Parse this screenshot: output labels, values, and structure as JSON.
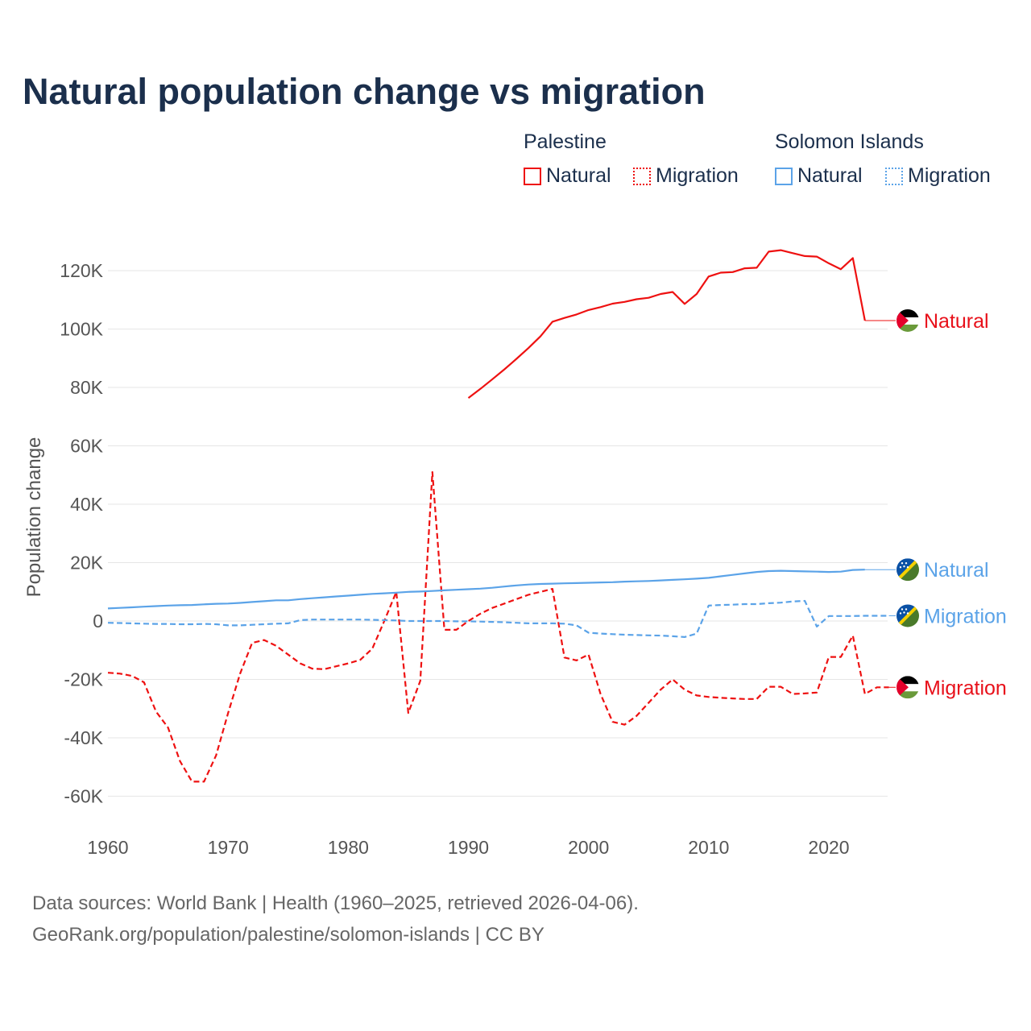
{
  "chart_data": {
    "type": "line",
    "title": "Natural population change vs migration",
    "ylabel": "Population change",
    "xlabel": "",
    "xlim": [
      1960,
      2025
    ],
    "ylim": [
      -70000,
      130000
    ],
    "xticks": [
      1960,
      1970,
      1980,
      1990,
      2000,
      2010,
      2020
    ],
    "xtick_labels": [
      "1960",
      "1970",
      "1980",
      "1990",
      "2000",
      "2010",
      "2020"
    ],
    "yticks": [
      -60000,
      -40000,
      -20000,
      0,
      20000,
      40000,
      60000,
      80000,
      100000,
      120000
    ],
    "ytick_labels": [
      "-60K",
      "-40K",
      "-20K",
      "0",
      "20K",
      "40K",
      "60K",
      "80K",
      "100K",
      "120K"
    ],
    "grid": true,
    "legend": {
      "placement": "top-right",
      "groups": [
        {
          "name": "Palestine",
          "items": [
            "Natural",
            "Migration"
          ]
        },
        {
          "name": "Solomon Islands",
          "items": [
            "Natural",
            "Migration"
          ]
        }
      ]
    },
    "series": [
      {
        "name": "Palestine Natural",
        "country": "Palestine",
        "kind": "Natural",
        "color": "#ee1111",
        "dash": false,
        "start": 1990,
        "values": [
          76400,
          79500,
          82800,
          86200,
          89800,
          93500,
          97500,
          102500,
          103800,
          105000,
          106500,
          107500,
          108700,
          109300,
          110200,
          110700,
          112000,
          112700,
          108600,
          112000,
          118000,
          119300,
          119500,
          120800,
          121000,
          126500,
          127000,
          126000,
          125000,
          124800,
          122500,
          120500,
          124300,
          102900
        ],
        "end_label": "Natural"
      },
      {
        "name": "Palestine Migration",
        "country": "Palestine",
        "kind": "Migration",
        "color": "#ee1111",
        "dash": true,
        "start": 1960,
        "values": [
          -17700,
          -18000,
          -18800,
          -21000,
          -31000,
          -36500,
          -48000,
          -55000,
          -55000,
          -46000,
          -31500,
          -18000,
          -7500,
          -6500,
          -8500,
          -11500,
          -14500,
          -16300,
          -16500,
          -15500,
          -14500,
          -13300,
          -9500,
          0,
          10000,
          -31500,
          -20500,
          51000,
          -3000,
          -3000,
          0,
          2500,
          4500,
          6000,
          7500,
          9000,
          10000,
          11000,
          -12500,
          -13500,
          -11500,
          -25000,
          -34500,
          -35500,
          -32500,
          -28000,
          -23500,
          -20000,
          -23500,
          -25500,
          -26000,
          -26300,
          -26500,
          -26700,
          -26700,
          -22500,
          -22500,
          -25000,
          -24800,
          -24500,
          -12300,
          -12300,
          -5000,
          -25000,
          -22700,
          -22700
        ],
        "end_label": "Migration"
      },
      {
        "name": "Solomon Islands Natural",
        "country": "Solomon Islands",
        "kind": "Natural",
        "color": "#5ba3e8",
        "dash": false,
        "start": 1960,
        "values": [
          4300,
          4500,
          4700,
          4900,
          5100,
          5300,
          5400,
          5500,
          5700,
          5900,
          6000,
          6200,
          6500,
          6800,
          7100,
          7100,
          7500,
          7800,
          8100,
          8400,
          8700,
          9000,
          9300,
          9500,
          9700,
          10000,
          10100,
          10300,
          10500,
          10700,
          10900,
          11100,
          11400,
          11800,
          12200,
          12500,
          12700,
          12800,
          12900,
          13000,
          13100,
          13200,
          13300,
          13500,
          13600,
          13700,
          13900,
          14100,
          14300,
          14500,
          14800,
          15300,
          15800,
          16300,
          16800,
          17100,
          17200,
          17100,
          17000,
          16900,
          16800,
          16900,
          17500,
          17600
        ],
        "end_label": "Natural"
      },
      {
        "name": "Solomon Islands Migration",
        "country": "Solomon Islands",
        "kind": "Migration",
        "color": "#5ba3e8",
        "dash": true,
        "start": 1960,
        "values": [
          -600,
          -700,
          -800,
          -900,
          -1000,
          -1000,
          -1100,
          -1100,
          -1000,
          -1100,
          -1500,
          -1500,
          -1300,
          -1100,
          -900,
          -800,
          300,
          500,
          500,
          500,
          500,
          500,
          400,
          300,
          200,
          0,
          0,
          0,
          0,
          -100,
          -100,
          -200,
          -300,
          -400,
          -600,
          -800,
          -800,
          -800,
          -900,
          -1500,
          -4000,
          -4300,
          -4500,
          -4700,
          -4800,
          -4900,
          -5000,
          -5200,
          -5500,
          -4300,
          5300,
          5500,
          5600,
          5800,
          5800,
          6100,
          6300,
          6700,
          6900,
          -1900,
          1700,
          1700,
          1700,
          1800,
          1800,
          1800
        ],
        "end_label": "Migration"
      }
    ]
  },
  "sources_line": "Data sources: World Bank | Health (1960–2025, retrieved 2026-04-06).",
  "url_line": "GeoRank.org/population/palestine/solomon-islands | CC BY"
}
